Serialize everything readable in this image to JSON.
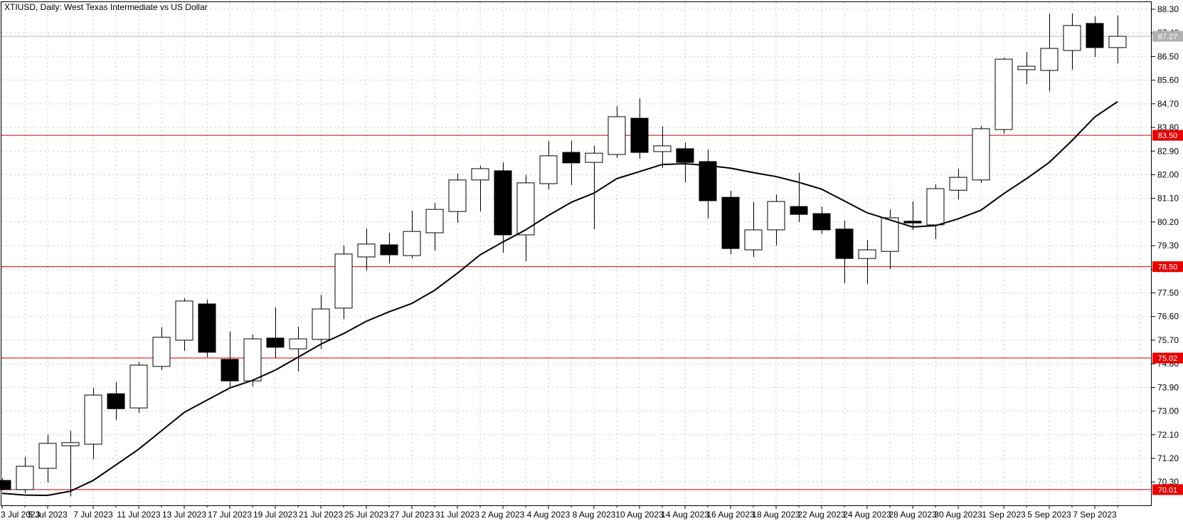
{
  "title": "XTIUSD, Daily: West Texas Intermediate vs US Dollar",
  "colors": {
    "background": "#ffffff",
    "grid": "#c9c9c9",
    "border": "#000000",
    "candle_up_fill": "#ffffff",
    "candle_down_fill": "#000000",
    "candle_stroke": "#000000",
    "ma_line": "#000000",
    "level_line": "#cc0000",
    "level_badge": "#e60000",
    "level_badge_text": "#ffffff",
    "current_price_line": "#b3b3b3",
    "current_price_badge": "#b0b0b0",
    "current_price_text": "#ffffff",
    "axis_text": "#000000"
  },
  "chart_data": {
    "type": "candlestick",
    "symbol": "XTIUSD",
    "timeframe": "Daily",
    "description": "West Texas Intermediate vs US Dollar",
    "legend_position": "none",
    "grid": true,
    "y_axis": {
      "side": "right",
      "top_label_price": 88.3,
      "step": 0.9,
      "labels": [
        "88.30",
        "87.40",
        "86.50",
        "85.60",
        "84.70",
        "83.80",
        "82.90",
        "82.00",
        "81.10",
        "80.20",
        "79.30",
        "78.40",
        "77.50",
        "76.60",
        "75.70",
        "74.80",
        "73.90",
        "73.00",
        "72.10",
        "71.20",
        "70.30"
      ]
    },
    "x_axis": {
      "labels": [
        "3 Jul 2023",
        "5 Jul 2023",
        "7 Jul 2023",
        "11 Jul 2023",
        "13 Jul 2023",
        "17 Jul 2023",
        "19 Jul 2023",
        "21 Jul 2023",
        "25 Jul 2023",
        "27 Jul 2023",
        "31 Jul 2023",
        "2 Aug 2023",
        "4 Aug 2023",
        "8 Aug 2023",
        "10 Aug 2023",
        "14 Aug 2023",
        "16 Aug 2023",
        "18 Aug 2023",
        "22 Aug 2023",
        "24 Aug 2023",
        "28 Aug 2023",
        "30 Aug 2023",
        "1 Sep 2023",
        "5 Sep 2023",
        "7 Sep 2023"
      ],
      "label_every_n_bars": 2
    },
    "levels": [
      {
        "value": "83.50",
        "price": 83.5
      },
      {
        "value": "78.50",
        "price": 78.5
      },
      {
        "value": "75.02",
        "price": 75.02
      },
      {
        "value": "70.01",
        "price": 70.01
      }
    ],
    "current_price": {
      "value": "87.27",
      "price": 87.27
    },
    "moving_average": [
      69.87,
      69.8,
      69.79,
      69.95,
      70.36,
      70.95,
      71.55,
      72.25,
      72.95,
      73.42,
      73.88,
      74.17,
      74.56,
      75.05,
      75.55,
      75.95,
      76.42,
      76.78,
      77.1,
      77.6,
      78.25,
      78.95,
      79.44,
      79.9,
      80.45,
      80.95,
      81.3,
      81.85,
      82.12,
      82.39,
      82.42,
      82.35,
      82.25,
      82.08,
      81.93,
      81.71,
      81.45,
      81.0,
      80.55,
      80.28,
      80.01,
      80.06,
      80.32,
      80.65,
      81.28,
      81.85,
      82.47,
      83.3,
      84.2,
      84.78
    ],
    "candles": [
      {
        "date": "3 Jul 2023",
        "o": 70.36,
        "h": 70.45,
        "l": 69.98,
        "c": 70.01
      },
      {
        "date": "4 Jul 2023",
        "o": 70.01,
        "h": 71.26,
        "l": 69.88,
        "c": 70.9
      },
      {
        "date": "5 Jul 2023",
        "o": 70.82,
        "h": 72.1,
        "l": 70.28,
        "c": 71.77
      },
      {
        "date": "6 Jul 2023",
        "o": 71.68,
        "h": 72.25,
        "l": 69.75,
        "c": 71.8
      },
      {
        "date": "7 Jul 2023",
        "o": 71.74,
        "h": 73.88,
        "l": 71.17,
        "c": 73.61
      },
      {
        "date": "10 Jul 2023",
        "o": 73.66,
        "h": 74.1,
        "l": 72.66,
        "c": 73.09
      },
      {
        "date": "11 Jul 2023",
        "o": 73.12,
        "h": 74.86,
        "l": 72.93,
        "c": 74.75
      },
      {
        "date": "12 Jul 2023",
        "o": 74.7,
        "h": 76.19,
        "l": 74.56,
        "c": 75.81
      },
      {
        "date": "13 Jul 2023",
        "o": 75.7,
        "h": 77.3,
        "l": 75.29,
        "c": 77.19
      },
      {
        "date": "14 Jul 2023",
        "o": 77.08,
        "h": 77.25,
        "l": 75.05,
        "c": 75.24
      },
      {
        "date": "17 Jul 2023",
        "o": 74.97,
        "h": 76.02,
        "l": 73.86,
        "c": 74.15
      },
      {
        "date": "18 Jul 2023",
        "o": 74.15,
        "h": 75.92,
        "l": 73.94,
        "c": 75.75
      },
      {
        "date": "19 Jul 2023",
        "o": 75.78,
        "h": 76.95,
        "l": 75.02,
        "c": 75.43
      },
      {
        "date": "20 Jul 2023",
        "o": 75.37,
        "h": 76.21,
        "l": 74.51,
        "c": 75.75
      },
      {
        "date": "21 Jul 2023",
        "o": 75.73,
        "h": 77.43,
        "l": 75.37,
        "c": 76.89
      },
      {
        "date": "24 Jul 2023",
        "o": 76.92,
        "h": 79.3,
        "l": 76.51,
        "c": 78.98
      },
      {
        "date": "25 Jul 2023",
        "o": 78.87,
        "h": 79.95,
        "l": 78.35,
        "c": 79.36
      },
      {
        "date": "26 Jul 2023",
        "o": 79.33,
        "h": 79.79,
        "l": 78.62,
        "c": 78.95
      },
      {
        "date": "27 Jul 2023",
        "o": 78.92,
        "h": 80.63,
        "l": 78.81,
        "c": 79.84
      },
      {
        "date": "28 Jul 2023",
        "o": 79.79,
        "h": 80.93,
        "l": 79.11,
        "c": 80.68
      },
      {
        "date": "31 Jul 2023",
        "o": 80.6,
        "h": 82.04,
        "l": 80.17,
        "c": 81.8
      },
      {
        "date": "1 Aug 2023",
        "o": 81.8,
        "h": 82.34,
        "l": 80.6,
        "c": 82.23
      },
      {
        "date": "2 Aug 2023",
        "o": 82.15,
        "h": 82.47,
        "l": 79.03,
        "c": 79.71
      },
      {
        "date": "3 Aug 2023",
        "o": 79.71,
        "h": 81.99,
        "l": 78.7,
        "c": 81.69
      },
      {
        "date": "4 Aug 2023",
        "o": 81.66,
        "h": 83.29,
        "l": 81.44,
        "c": 82.72
      },
      {
        "date": "7 Aug 2023",
        "o": 82.85,
        "h": 83.29,
        "l": 81.61,
        "c": 82.45
      },
      {
        "date": "8 Aug 2023",
        "o": 82.47,
        "h": 83.1,
        "l": 79.93,
        "c": 82.82
      },
      {
        "date": "9 Aug 2023",
        "o": 82.77,
        "h": 84.61,
        "l": 82.64,
        "c": 84.21
      },
      {
        "date": "10 Aug 2023",
        "o": 84.15,
        "h": 84.91,
        "l": 82.61,
        "c": 82.85
      },
      {
        "date": "11 Aug 2023",
        "o": 82.88,
        "h": 83.83,
        "l": 82.26,
        "c": 83.1
      },
      {
        "date": "14 Aug 2023",
        "o": 82.99,
        "h": 83.23,
        "l": 81.71,
        "c": 82.47
      },
      {
        "date": "15 Aug 2023",
        "o": 82.5,
        "h": 82.96,
        "l": 80.33,
        "c": 81.01
      },
      {
        "date": "16 Aug 2023",
        "o": 81.14,
        "h": 81.39,
        "l": 78.97,
        "c": 79.19
      },
      {
        "date": "17 Aug 2023",
        "o": 79.14,
        "h": 80.96,
        "l": 78.87,
        "c": 79.9
      },
      {
        "date": "18 Aug 2023",
        "o": 79.9,
        "h": 81.25,
        "l": 79.3,
        "c": 80.98
      },
      {
        "date": "21 Aug 2023",
        "o": 80.79,
        "h": 82.07,
        "l": 80.2,
        "c": 80.49
      },
      {
        "date": "22 Aug 2023",
        "o": 80.52,
        "h": 80.79,
        "l": 79.74,
        "c": 79.9
      },
      {
        "date": "23 Aug 2023",
        "o": 79.93,
        "h": 80.25,
        "l": 77.87,
        "c": 78.81
      },
      {
        "date": "24 Aug 2023",
        "o": 78.81,
        "h": 79.52,
        "l": 77.84,
        "c": 79.14
      },
      {
        "date": "25 Aug 2023",
        "o": 79.08,
        "h": 80.68,
        "l": 78.41,
        "c": 80.36
      },
      {
        "date": "28 Aug 2023",
        "o": 80.23,
        "h": 80.99,
        "l": 79.9,
        "c": 80.17
      },
      {
        "date": "29 Aug 2023",
        "o": 80.09,
        "h": 81.63,
        "l": 79.55,
        "c": 81.47
      },
      {
        "date": "30 Aug 2023",
        "o": 81.41,
        "h": 82.23,
        "l": 81.06,
        "c": 81.9
      },
      {
        "date": "31 Aug 2023",
        "o": 81.8,
        "h": 83.86,
        "l": 81.69,
        "c": 83.75
      },
      {
        "date": "1 Sep 2023",
        "o": 83.72,
        "h": 86.45,
        "l": 83.56,
        "c": 86.4
      },
      {
        "date": "4 Sep 2023",
        "o": 86.0,
        "h": 86.67,
        "l": 85.45,
        "c": 86.13
      },
      {
        "date": "5 Sep 2023",
        "o": 85.97,
        "h": 88.14,
        "l": 85.18,
        "c": 86.81
      },
      {
        "date": "6 Sep 2023",
        "o": 86.73,
        "h": 88.14,
        "l": 86.0,
        "c": 87.68
      },
      {
        "date": "7 Sep 2023",
        "o": 87.76,
        "h": 88.03,
        "l": 86.48,
        "c": 86.84
      },
      {
        "date": "8 Sep 2023",
        "o": 86.84,
        "h": 88.06,
        "l": 86.24,
        "c": 87.27
      }
    ]
  }
}
